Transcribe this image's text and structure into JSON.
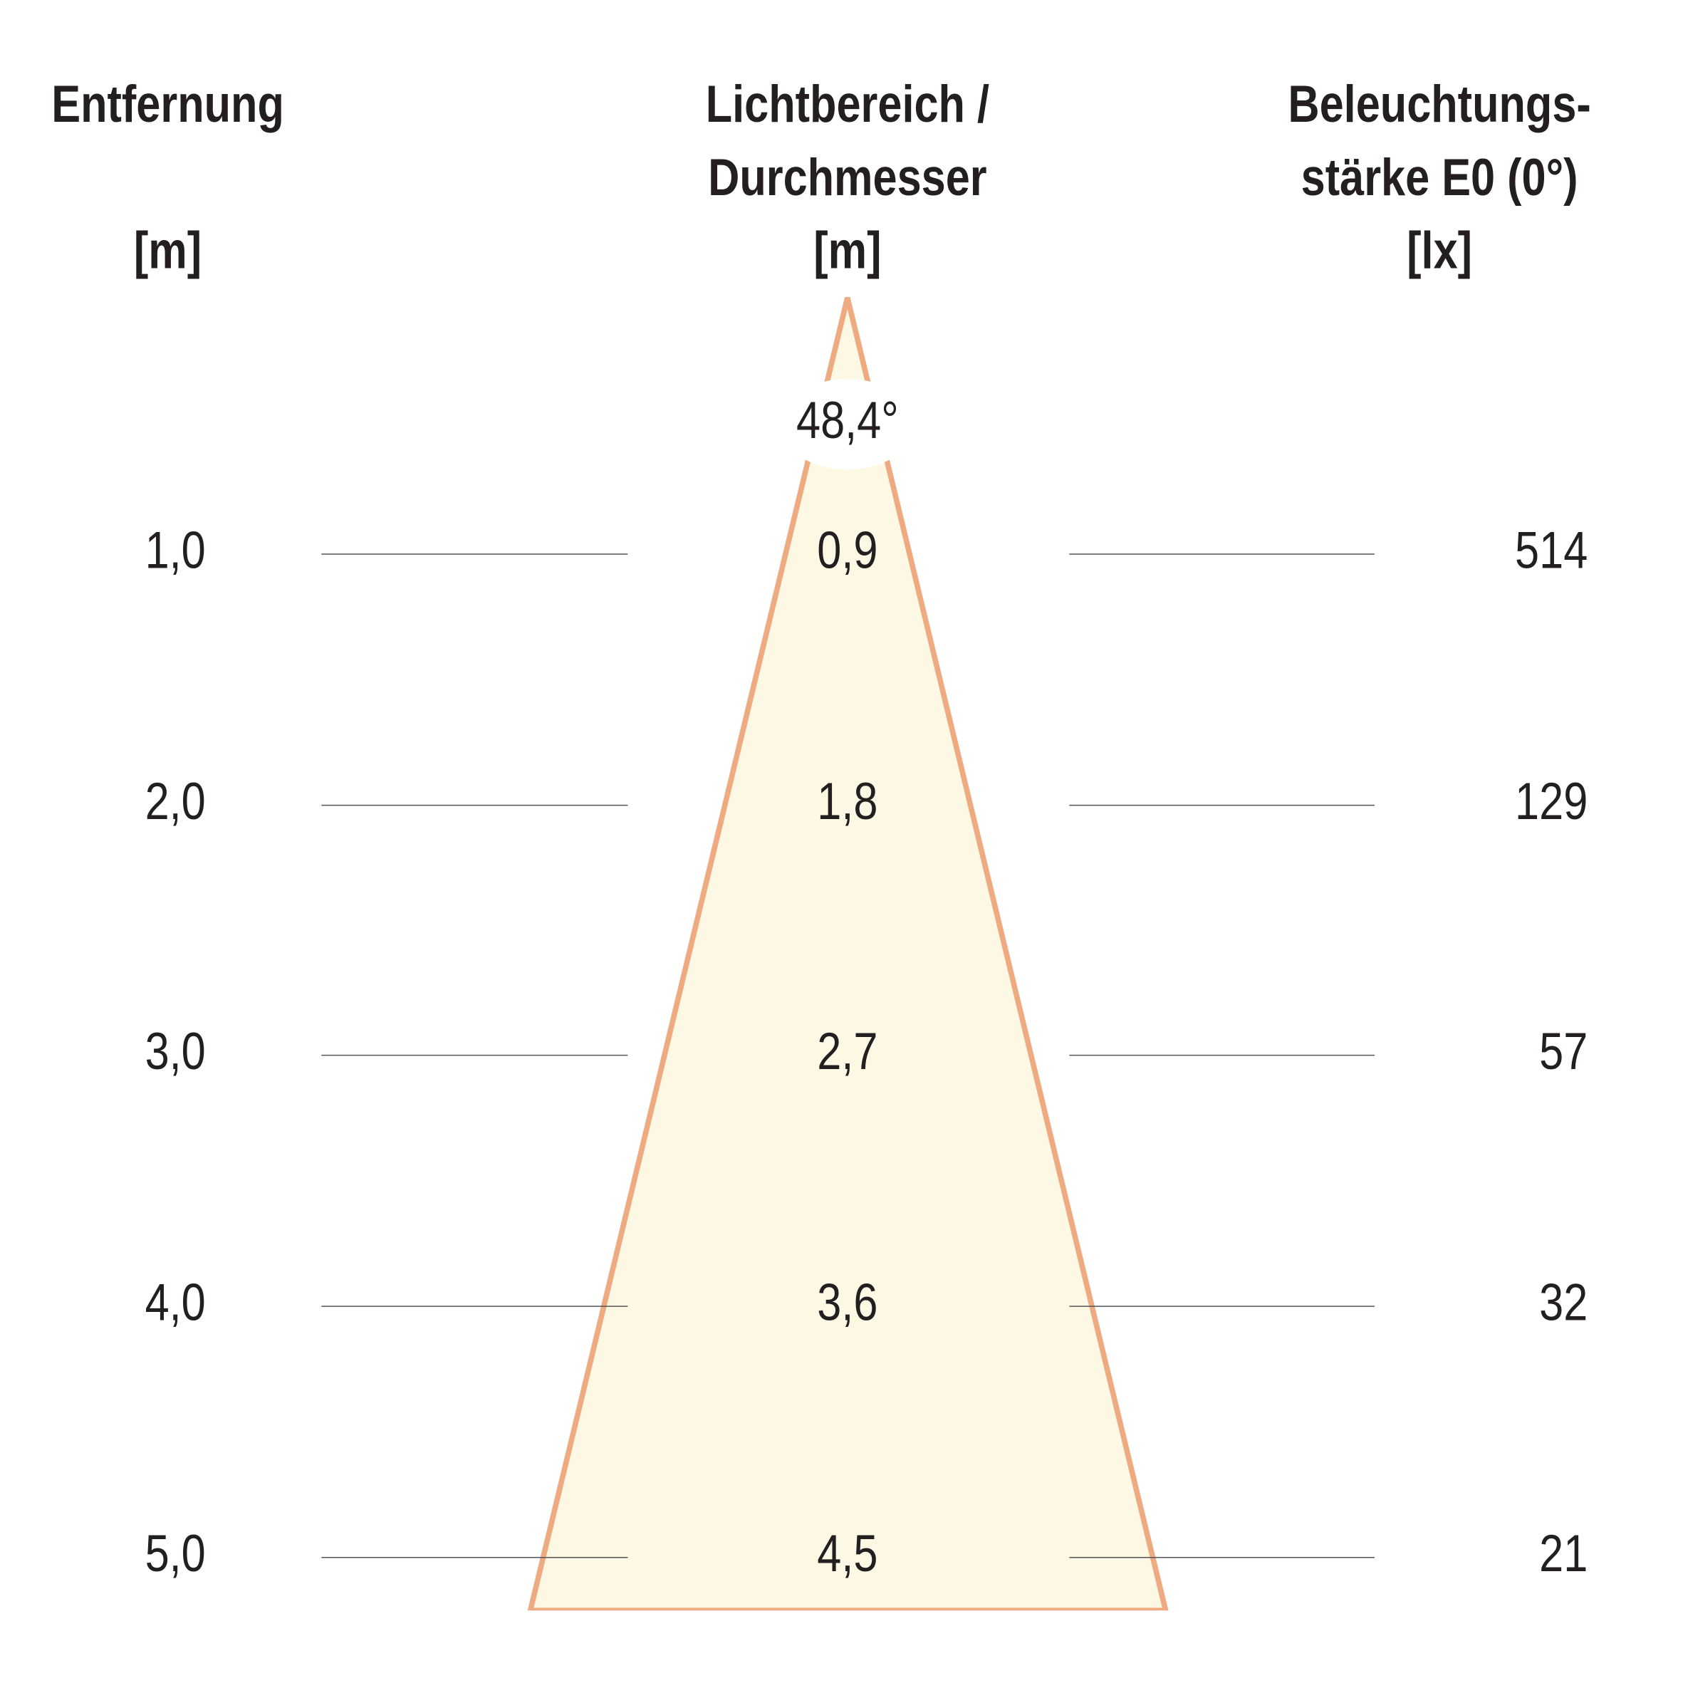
{
  "headers": [
    {
      "lines": [
        "Entfernung",
        "[m]"
      ]
    },
    {
      "lines": [
        "Lichtbereich /",
        "Durchmesser",
        "[m]"
      ]
    },
    {
      "lines": [
        "Beleuchtungs-",
        "stärke E0 (0°)",
        "[lx]"
      ]
    }
  ],
  "angle": "48,4°",
  "rows": [
    [
      "1,0",
      "0,9",
      "514"
    ],
    [
      "2,0",
      "1,8",
      "129"
    ],
    [
      "3,0",
      "2,7",
      "57"
    ],
    [
      "4,0",
      "3,6",
      "32"
    ],
    [
      "5,0",
      "4,5",
      "21"
    ]
  ]
}
